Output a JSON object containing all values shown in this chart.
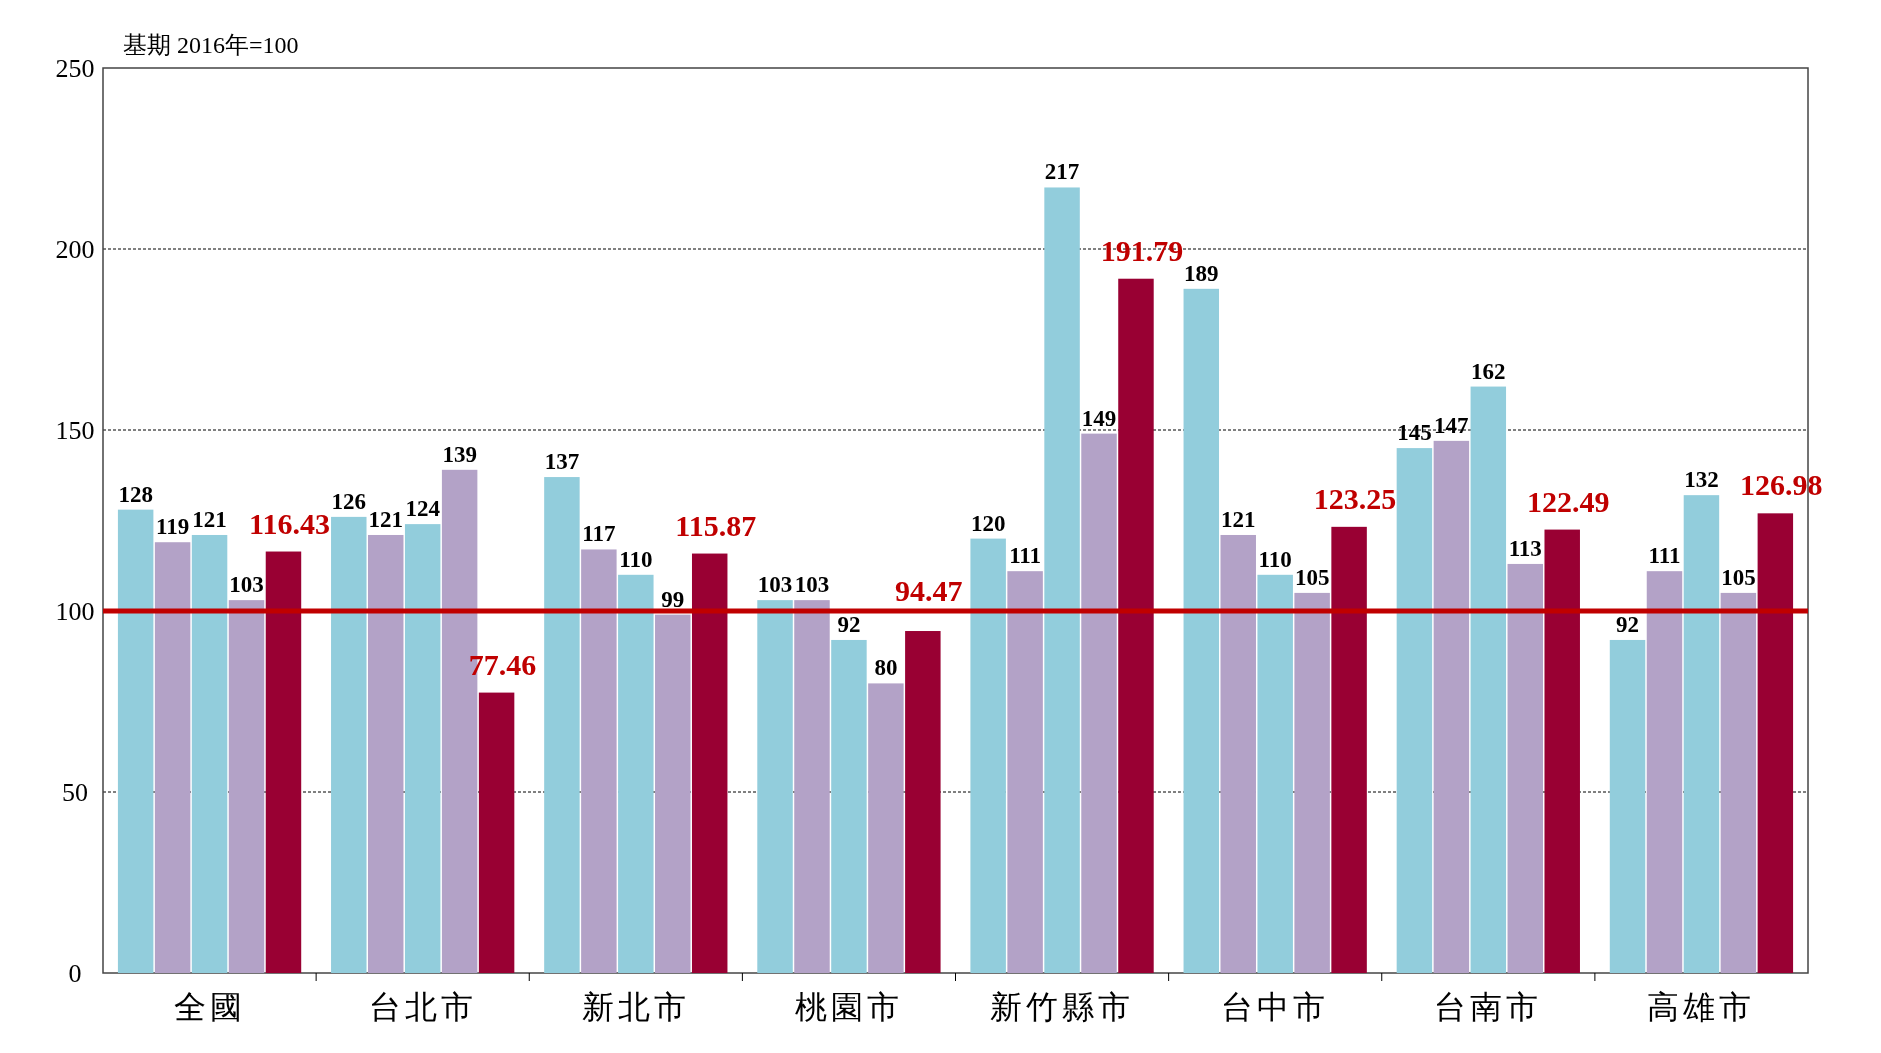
{
  "chart_data": {
    "type": "bar",
    "subtitle": "基期 2016年=100",
    "categories": [
      "全國",
      "台北市",
      "新北市",
      "桃園市",
      "新竹縣市",
      "台中市",
      "台南市",
      "高雄市"
    ],
    "series": [
      {
        "color": "#92cddc",
        "values": [
          128,
          126,
          137,
          103,
          120,
          189,
          145,
          92
        ]
      },
      {
        "color": "#b3a2c7",
        "values": [
          119,
          121,
          117,
          103,
          111,
          121,
          147,
          111
        ]
      },
      {
        "color": "#92cddc",
        "values": [
          121,
          124,
          110,
          92,
          217,
          110,
          162,
          132
        ]
      },
      {
        "color": "#b3a2c7",
        "values": [
          103,
          139,
          99,
          80,
          149,
          105,
          113,
          105
        ]
      },
      {
        "color": "#990033",
        "values": [
          116.43,
          77.46,
          115.87,
          94.47,
          191.79,
          123.25,
          122.49,
          126.98
        ]
      }
    ],
    "ylim": [
      0,
      250
    ],
    "yticks": [
      0,
      50,
      100,
      150,
      200,
      250
    ],
    "grid": "y",
    "data_labels": true,
    "ref_lines": [
      {
        "axis": "y",
        "value": 100,
        "color": "#c00000"
      }
    ]
  }
}
